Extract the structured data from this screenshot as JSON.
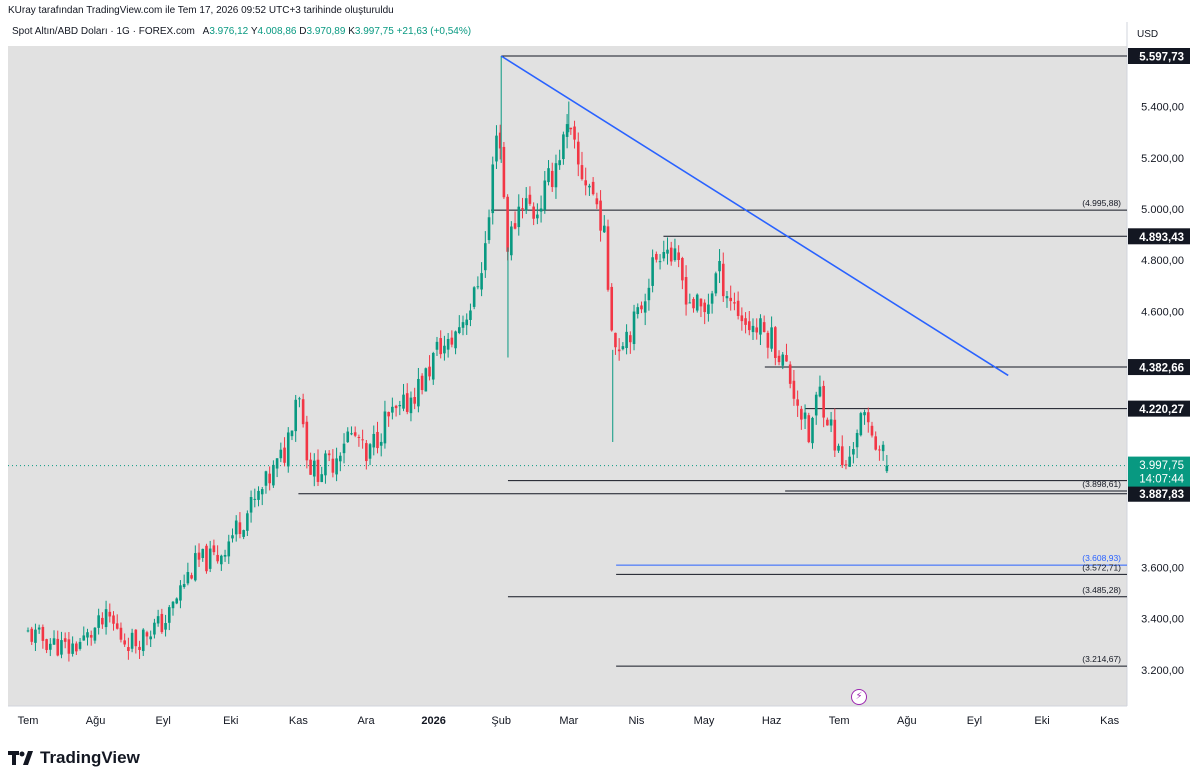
{
  "header": {
    "attribution": "KUray tarafından TradingView.com ile Tem 17, 2026 09:52 UTC+3 tarihinde oluşturuldu",
    "symbol": "Spot Altın/ABD Doları · 1G · FOREX.com",
    "open_label": "A",
    "open": "3.976,12",
    "high_label": "Y",
    "high": "4.008,86",
    "low_label": "D",
    "low": "3.970,89",
    "close_label": "K",
    "close": "3.997,75",
    "change": "+21,63 (+0,54%)"
  },
  "price_axis": {
    "unit": "USD"
  },
  "watermark": {
    "brand": "TradingView"
  },
  "colors": {
    "up": "#089981",
    "down": "#f23645",
    "trendline": "#2962ff",
    "level": "#131722",
    "background": "#e1e1e1"
  },
  "chart_data": {
    "type": "candlestick",
    "title": "Spot Altın/ABD Doları · 1G · FOREX.com",
    "ylim": [
      3150,
      5700
    ],
    "yticks": [
      3200,
      3400,
      3600,
      3800,
      4000,
      4200,
      4400,
      4600,
      4800,
      5000,
      5200,
      5400
    ],
    "ytick_labels": [
      "3.200,00",
      "3.400,00",
      "3.600,00",
      "",
      "",
      "",
      "",
      "4.600,00",
      "4.800,00",
      "5.000,00",
      "5.200,00",
      "5.400,00"
    ],
    "xticks": [
      {
        "label": "Tem",
        "month": 0
      },
      {
        "label": "Ağu",
        "month": 1
      },
      {
        "label": "Eyl",
        "month": 2
      },
      {
        "label": "Eki",
        "month": 3
      },
      {
        "label": "Kas",
        "month": 4
      },
      {
        "label": "Ara",
        "month": 5
      },
      {
        "label": "2026",
        "month": 6,
        "bold": true
      },
      {
        "label": "Şub",
        "month": 7
      },
      {
        "label": "Mar",
        "month": 8
      },
      {
        "label": "Nis",
        "month": 9
      },
      {
        "label": "May",
        "month": 10
      },
      {
        "label": "Haz",
        "month": 11
      },
      {
        "label": "Tem",
        "month": 12
      },
      {
        "label": "Ağu",
        "month": 13
      },
      {
        "label": "Eyl",
        "month": 14
      },
      {
        "label": "Eki",
        "month": 15
      },
      {
        "label": "Kas",
        "month": 16
      }
    ],
    "last_price": {
      "value": 3997.75,
      "label": "3.997,75",
      "countdown": "14:07:44"
    },
    "price_labels": [
      {
        "value": 5597.73,
        "label": "5.597,73"
      },
      {
        "value": 4893.43,
        "label": "4.893,43"
      },
      {
        "value": 4382.66,
        "label": "4.382,66"
      },
      {
        "value": 4220.27,
        "label": "4.220,27"
      },
      {
        "value": 3938.85,
        "label": "3.938,85"
      },
      {
        "value": 3887.83,
        "label": "3.887,83"
      }
    ],
    "levels": [
      {
        "value": 5597.73,
        "from": 7.0,
        "label": ""
      },
      {
        "value": 4995.88,
        "from": 6.85,
        "label": "(4.995,88)"
      },
      {
        "value": 4893.43,
        "from": 9.4,
        "label": ""
      },
      {
        "value": 4382.66,
        "from": 10.9,
        "label": ""
      },
      {
        "value": 4220.27,
        "from": 11.5,
        "label": ""
      },
      {
        "value": 3898.61,
        "from": 11.2,
        "label": "(3.898,61)"
      },
      {
        "value": 3938.85,
        "from": 7.1,
        "label": ""
      },
      {
        "value": 3887.83,
        "from": 4.0,
        "label": ""
      },
      {
        "value": 3608.93,
        "from": 8.7,
        "label": "(3.608,93)",
        "blue": true
      },
      {
        "value": 3572.71,
        "from": 8.7,
        "label": "(3.572,71)"
      },
      {
        "value": 3485.28,
        "from": 7.1,
        "label": "(3.485,28)"
      },
      {
        "value": 3214.67,
        "from": 8.7,
        "label": "(3.214,67)"
      }
    ],
    "trendline": {
      "from": {
        "month": 7.0,
        "value": 5597.73
      },
      "to": {
        "month": 14.5,
        "value": 4350
      }
    },
    "path": [
      [
        0.0,
        3340
      ],
      [
        0.3,
        3310
      ],
      [
        0.6,
        3280
      ],
      [
        0.9,
        3330
      ],
      [
        1.0,
        3360
      ],
      [
        1.2,
        3400
      ],
      [
        1.4,
        3320
      ],
      [
        1.6,
        3310
      ],
      [
        1.8,
        3360
      ],
      [
        2.0,
        3380
      ],
      [
        2.1,
        3420
      ],
      [
        2.3,
        3540
      ],
      [
        2.5,
        3620
      ],
      [
        2.8,
        3640
      ],
      [
        3.0,
        3720
      ],
      [
        3.2,
        3800
      ],
      [
        3.4,
        3870
      ],
      [
        3.6,
        3960
      ],
      [
        3.8,
        4050
      ],
      [
        3.9,
        4180
      ],
      [
        4.0,
        4330
      ],
      [
        4.1,
        4090
      ],
      [
        4.2,
        3970
      ],
      [
        4.35,
        3990
      ],
      [
        4.5,
        4010
      ],
      [
        4.7,
        4120
      ],
      [
        4.9,
        4100
      ],
      [
        5.0,
        4000
      ],
      [
        5.1,
        4080
      ],
      [
        5.3,
        4180
      ],
      [
        5.5,
        4200
      ],
      [
        5.7,
        4280
      ],
      [
        5.9,
        4350
      ],
      [
        6.0,
        4420
      ],
      [
        6.1,
        4470
      ],
      [
        6.2,
        4450
      ],
      [
        6.4,
        4560
      ],
      [
        6.6,
        4650
      ],
      [
        6.8,
        4900
      ],
      [
        6.95,
        5400
      ],
      [
        7.0,
        5180
      ],
      [
        7.1,
        4850
      ],
      [
        7.3,
        5050
      ],
      [
        7.5,
        4980
      ],
      [
        7.7,
        5100
      ],
      [
        7.9,
        5250
      ],
      [
        8.0,
        5300
      ],
      [
        8.15,
        5150
      ],
      [
        8.3,
        5100
      ],
      [
        8.5,
        4950
      ],
      [
        8.6,
        4650
      ],
      [
        8.7,
        4450
      ],
      [
        8.8,
        4510
      ],
      [
        9.0,
        4560
      ],
      [
        9.2,
        4750
      ],
      [
        9.4,
        4880
      ],
      [
        9.6,
        4770
      ],
      [
        9.8,
        4640
      ],
      [
        10.0,
        4590
      ],
      [
        10.2,
        4760
      ],
      [
        10.4,
        4650
      ],
      [
        10.6,
        4560
      ],
      [
        10.8,
        4530
      ],
      [
        11.0,
        4500
      ],
      [
        11.2,
        4390
      ],
      [
        11.4,
        4240
      ],
      [
        11.55,
        4100
      ],
      [
        11.7,
        4300
      ],
      [
        11.9,
        4130
      ],
      [
        12.0,
        4030
      ],
      [
        12.1,
        3980
      ],
      [
        12.3,
        4180
      ],
      [
        12.5,
        4130
      ],
      [
        12.6,
        4060
      ],
      [
        12.75,
        4000
      ]
    ]
  }
}
